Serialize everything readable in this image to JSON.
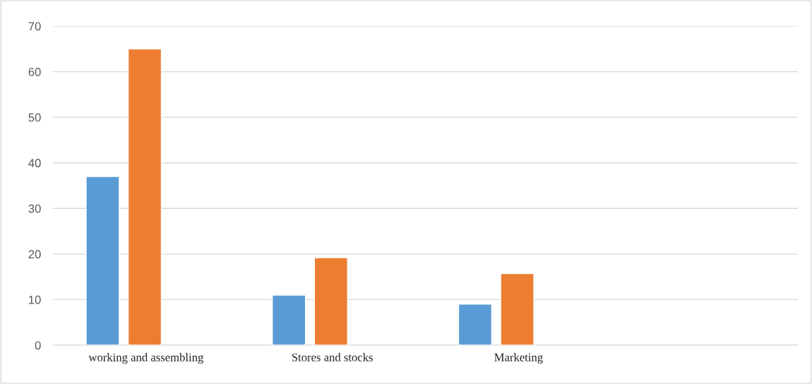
{
  "chart_data": {
    "type": "bar",
    "categories": [
      "working and assembling",
      "Stores and stocks",
      "Marketing",
      null
    ],
    "series": [
      {
        "color": "#5b9bd5",
        "values": [
          37,
          11,
          9,
          null
        ]
      },
      {
        "color": "#ed7d31",
        "values": [
          65,
          19.2,
          15.7,
          null
        ]
      }
    ],
    "ylim": [
      0,
      70
    ],
    "yticks": [
      0,
      10,
      20,
      30,
      40,
      50,
      60,
      70
    ],
    "grid": "y"
  }
}
